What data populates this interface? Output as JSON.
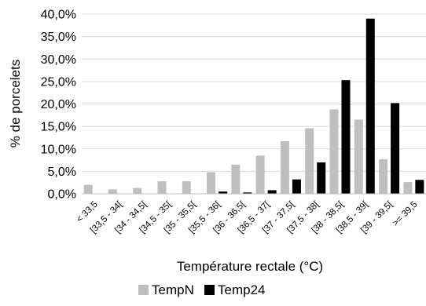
{
  "chart_data": {
    "type": "bar",
    "title": "",
    "xlabel": "Température rectale (°C)",
    "ylabel": "% de porcelets",
    "ylim": [
      0,
      40
    ],
    "y_ticks": [
      0,
      5,
      10,
      15,
      20,
      25,
      30,
      35,
      40
    ],
    "y_tick_labels": [
      "0,0%",
      "5,0%",
      "10,0%",
      "15,0%",
      "20,0%",
      "25,0%",
      "30,0%",
      "35,0%",
      "40,0%"
    ],
    "grid": true,
    "legend_position": "bottom",
    "categories": [
      "< 33,5",
      "[33,5 - 34[",
      "[34 - 34,5[",
      "[34,5 - 35[",
      "[35 - 35,5[",
      "[35,5 - 36[",
      "[36 - 36,5[",
      "[36,5 - 37[",
      "[37 - 37,5[",
      "[37,5 - 38[",
      "[38 - 38,5[",
      "[38,5 - 39[",
      "[39 - 39,5[",
      ">= 39,5"
    ],
    "series": [
      {
        "name": "TempN",
        "color": "#bfbfbf",
        "values": [
          2.0,
          1.0,
          1.3,
          2.8,
          2.8,
          4.8,
          6.5,
          8.5,
          11.7,
          14.6,
          18.8,
          16.5,
          7.7,
          2.6
        ]
      },
      {
        "name": "Temp24",
        "color": "#000000",
        "values": [
          0.0,
          0.0,
          0.0,
          0.0,
          0.0,
          0.5,
          0.3,
          0.8,
          3.2,
          7.0,
          25.3,
          39.0,
          20.2,
          3.1
        ]
      }
    ]
  }
}
